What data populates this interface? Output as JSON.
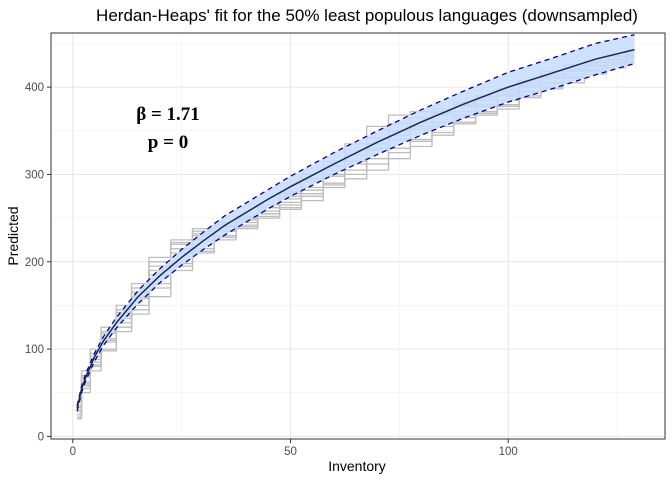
{
  "chart_data": {
    "type": "line",
    "title": "Herdan-Heaps' fit for the 50% least populous languages (downsampled)",
    "xlabel": "Inventory",
    "ylabel": "Predicted",
    "xlim": [
      -5,
      136
    ],
    "ylim": [
      -3,
      462
    ],
    "x_ticks": [
      0,
      50,
      100
    ],
    "y_ticks": [
      0,
      100,
      200,
      300,
      400
    ],
    "grid": true,
    "annotations": [
      {
        "text": "β = 1.71"
      },
      {
        "text": "p = 0"
      }
    ],
    "fit": {
      "x": [
        1,
        2,
        3,
        5,
        7,
        10,
        15,
        20,
        25,
        30,
        35,
        40,
        45,
        50,
        60,
        70,
        80,
        90,
        100,
        110,
        120,
        129
      ],
      "y": [
        32,
        54,
        68,
        91,
        109,
        130,
        160,
        184,
        205,
        224,
        242,
        257,
        272,
        286,
        312,
        337,
        360,
        381,
        400,
        416,
        432,
        443
      ],
      "lower": [
        29,
        50,
        64,
        86,
        104,
        124,
        152,
        176,
        196,
        214,
        231,
        246,
        261,
        275,
        300,
        323,
        345,
        365,
        383,
        398,
        414,
        427
      ],
      "upper": [
        35,
        57,
        72,
        95,
        114,
        136,
        167,
        192,
        214,
        234,
        253,
        268,
        283,
        298,
        325,
        350,
        374,
        396,
        417,
        433,
        450,
        460
      ],
      "line_color": "#1a2b4a",
      "band_color": "#c6dcff",
      "bound_color": "#00008b"
    },
    "trajectories": [
      {
        "x": [
          1,
          3,
          5,
          8,
          12,
          15,
          20,
          25,
          30,
          35,
          40,
          45,
          50,
          55,
          60,
          65,
          70,
          75,
          80,
          85,
          90,
          95,
          100,
          105,
          110,
          115,
          120,
          125,
          129
        ],
        "values": [
          25,
          60,
          88,
          110,
          135,
          160,
          185,
          220,
          230,
          240,
          250,
          262,
          280,
          300,
          310,
          328,
          335,
          350,
          360,
          372,
          380,
          388,
          395,
          405,
          412,
          420,
          428,
          432,
          436
        ]
      },
      {
        "x": [
          1,
          3,
          5,
          8,
          12,
          15,
          20,
          25,
          30,
          35,
          40,
          45,
          50,
          55,
          60,
          65,
          70,
          75,
          80,
          85,
          90,
          95,
          100,
          105,
          110,
          115,
          120,
          125,
          129
        ],
        "values": [
          35,
          70,
          95,
          120,
          145,
          170,
          200,
          222,
          235,
          242,
          248,
          258,
          272,
          285,
          300,
          312,
          330,
          345,
          352,
          360,
          368,
          378,
          385,
          400,
          410,
          418,
          424,
          430,
          432
        ]
      },
      {
        "x": [
          1,
          3,
          5,
          8,
          12,
          15,
          20,
          25,
          30,
          35,
          40,
          45,
          50,
          55,
          60,
          65,
          70,
          75,
          80,
          85,
          90,
          95,
          100,
          105,
          110,
          115,
          120,
          125,
          129
        ],
        "values": [
          20,
          55,
          80,
          100,
          125,
          140,
          160,
          195,
          210,
          225,
          238,
          252,
          262,
          278,
          290,
          305,
          318,
          330,
          338,
          348,
          358,
          368,
          375,
          390,
          400,
          410,
          418,
          425,
          430
        ]
      },
      {
        "x": [
          1,
          3,
          5,
          8,
          12,
          15,
          20,
          25,
          30,
          35,
          40,
          45,
          50,
          55,
          60,
          65,
          70,
          75,
          80,
          85,
          90,
          95,
          100,
          105,
          110,
          115,
          120,
          125,
          129
        ],
        "values": [
          40,
          75,
          100,
          125,
          150,
          175,
          205,
          225,
          238,
          245,
          250,
          262,
          275,
          295,
          315,
          335,
          355,
          368,
          372,
          375,
          382,
          390,
          398,
          408,
          418,
          425,
          430,
          435,
          438
        ]
      },
      {
        "x": [
          1,
          3,
          5,
          8,
          12,
          15,
          20,
          25,
          30,
          35,
          40,
          45,
          50,
          55,
          60,
          65,
          70,
          75,
          80,
          85,
          90,
          95,
          100,
          105,
          110,
          115,
          120,
          125,
          129
        ],
        "values": [
          28,
          62,
          85,
          112,
          138,
          158,
          190,
          210,
          225,
          235,
          245,
          255,
          268,
          282,
          298,
          315,
          328,
          340,
          355,
          368,
          372,
          380,
          390,
          400,
          405,
          412,
          420,
          428,
          434
        ]
      },
      {
        "x": [
          1,
          3,
          5,
          8,
          12,
          15,
          20,
          25,
          30,
          35,
          40,
          45,
          50,
          55,
          60,
          65,
          70,
          75,
          80,
          85,
          90,
          95,
          100,
          105,
          110,
          115,
          120,
          125,
          129
        ],
        "values": [
          30,
          58,
          82,
          108,
          130,
          150,
          175,
          198,
          215,
          230,
          242,
          255,
          265,
          275,
          285,
          295,
          305,
          318,
          332,
          345,
          360,
          370,
          380,
          395,
          405,
          415,
          425,
          432,
          435
        ]
      },
      {
        "x": [
          1,
          3,
          5,
          8,
          12,
          15,
          20,
          25,
          30,
          35,
          40,
          45,
          50,
          55,
          60,
          65,
          70,
          75,
          80,
          85,
          90,
          95,
          100,
          105,
          110,
          115,
          120,
          125,
          129
        ],
        "values": [
          33,
          68,
          92,
          118,
          142,
          165,
          195,
          215,
          232,
          240,
          252,
          265,
          278,
          292,
          305,
          322,
          342,
          358,
          365,
          370,
          378,
          385,
          392,
          402,
          414,
          422,
          428,
          436,
          440
        ]
      },
      {
        "x": [
          1,
          3,
          5,
          8,
          12,
          15,
          20,
          25,
          30,
          35,
          40,
          45,
          50,
          55,
          60,
          65,
          70,
          75,
          80,
          85,
          90,
          95,
          100,
          105,
          110,
          115,
          120,
          125,
          129
        ],
        "values": [
          22,
          50,
          75,
          98,
          120,
          145,
          170,
          190,
          212,
          228,
          240,
          250,
          260,
          270,
          288,
          300,
          312,
          325,
          340,
          355,
          365,
          372,
          378,
          388,
          398,
          405,
          415,
          422,
          428
        ]
      }
    ]
  }
}
